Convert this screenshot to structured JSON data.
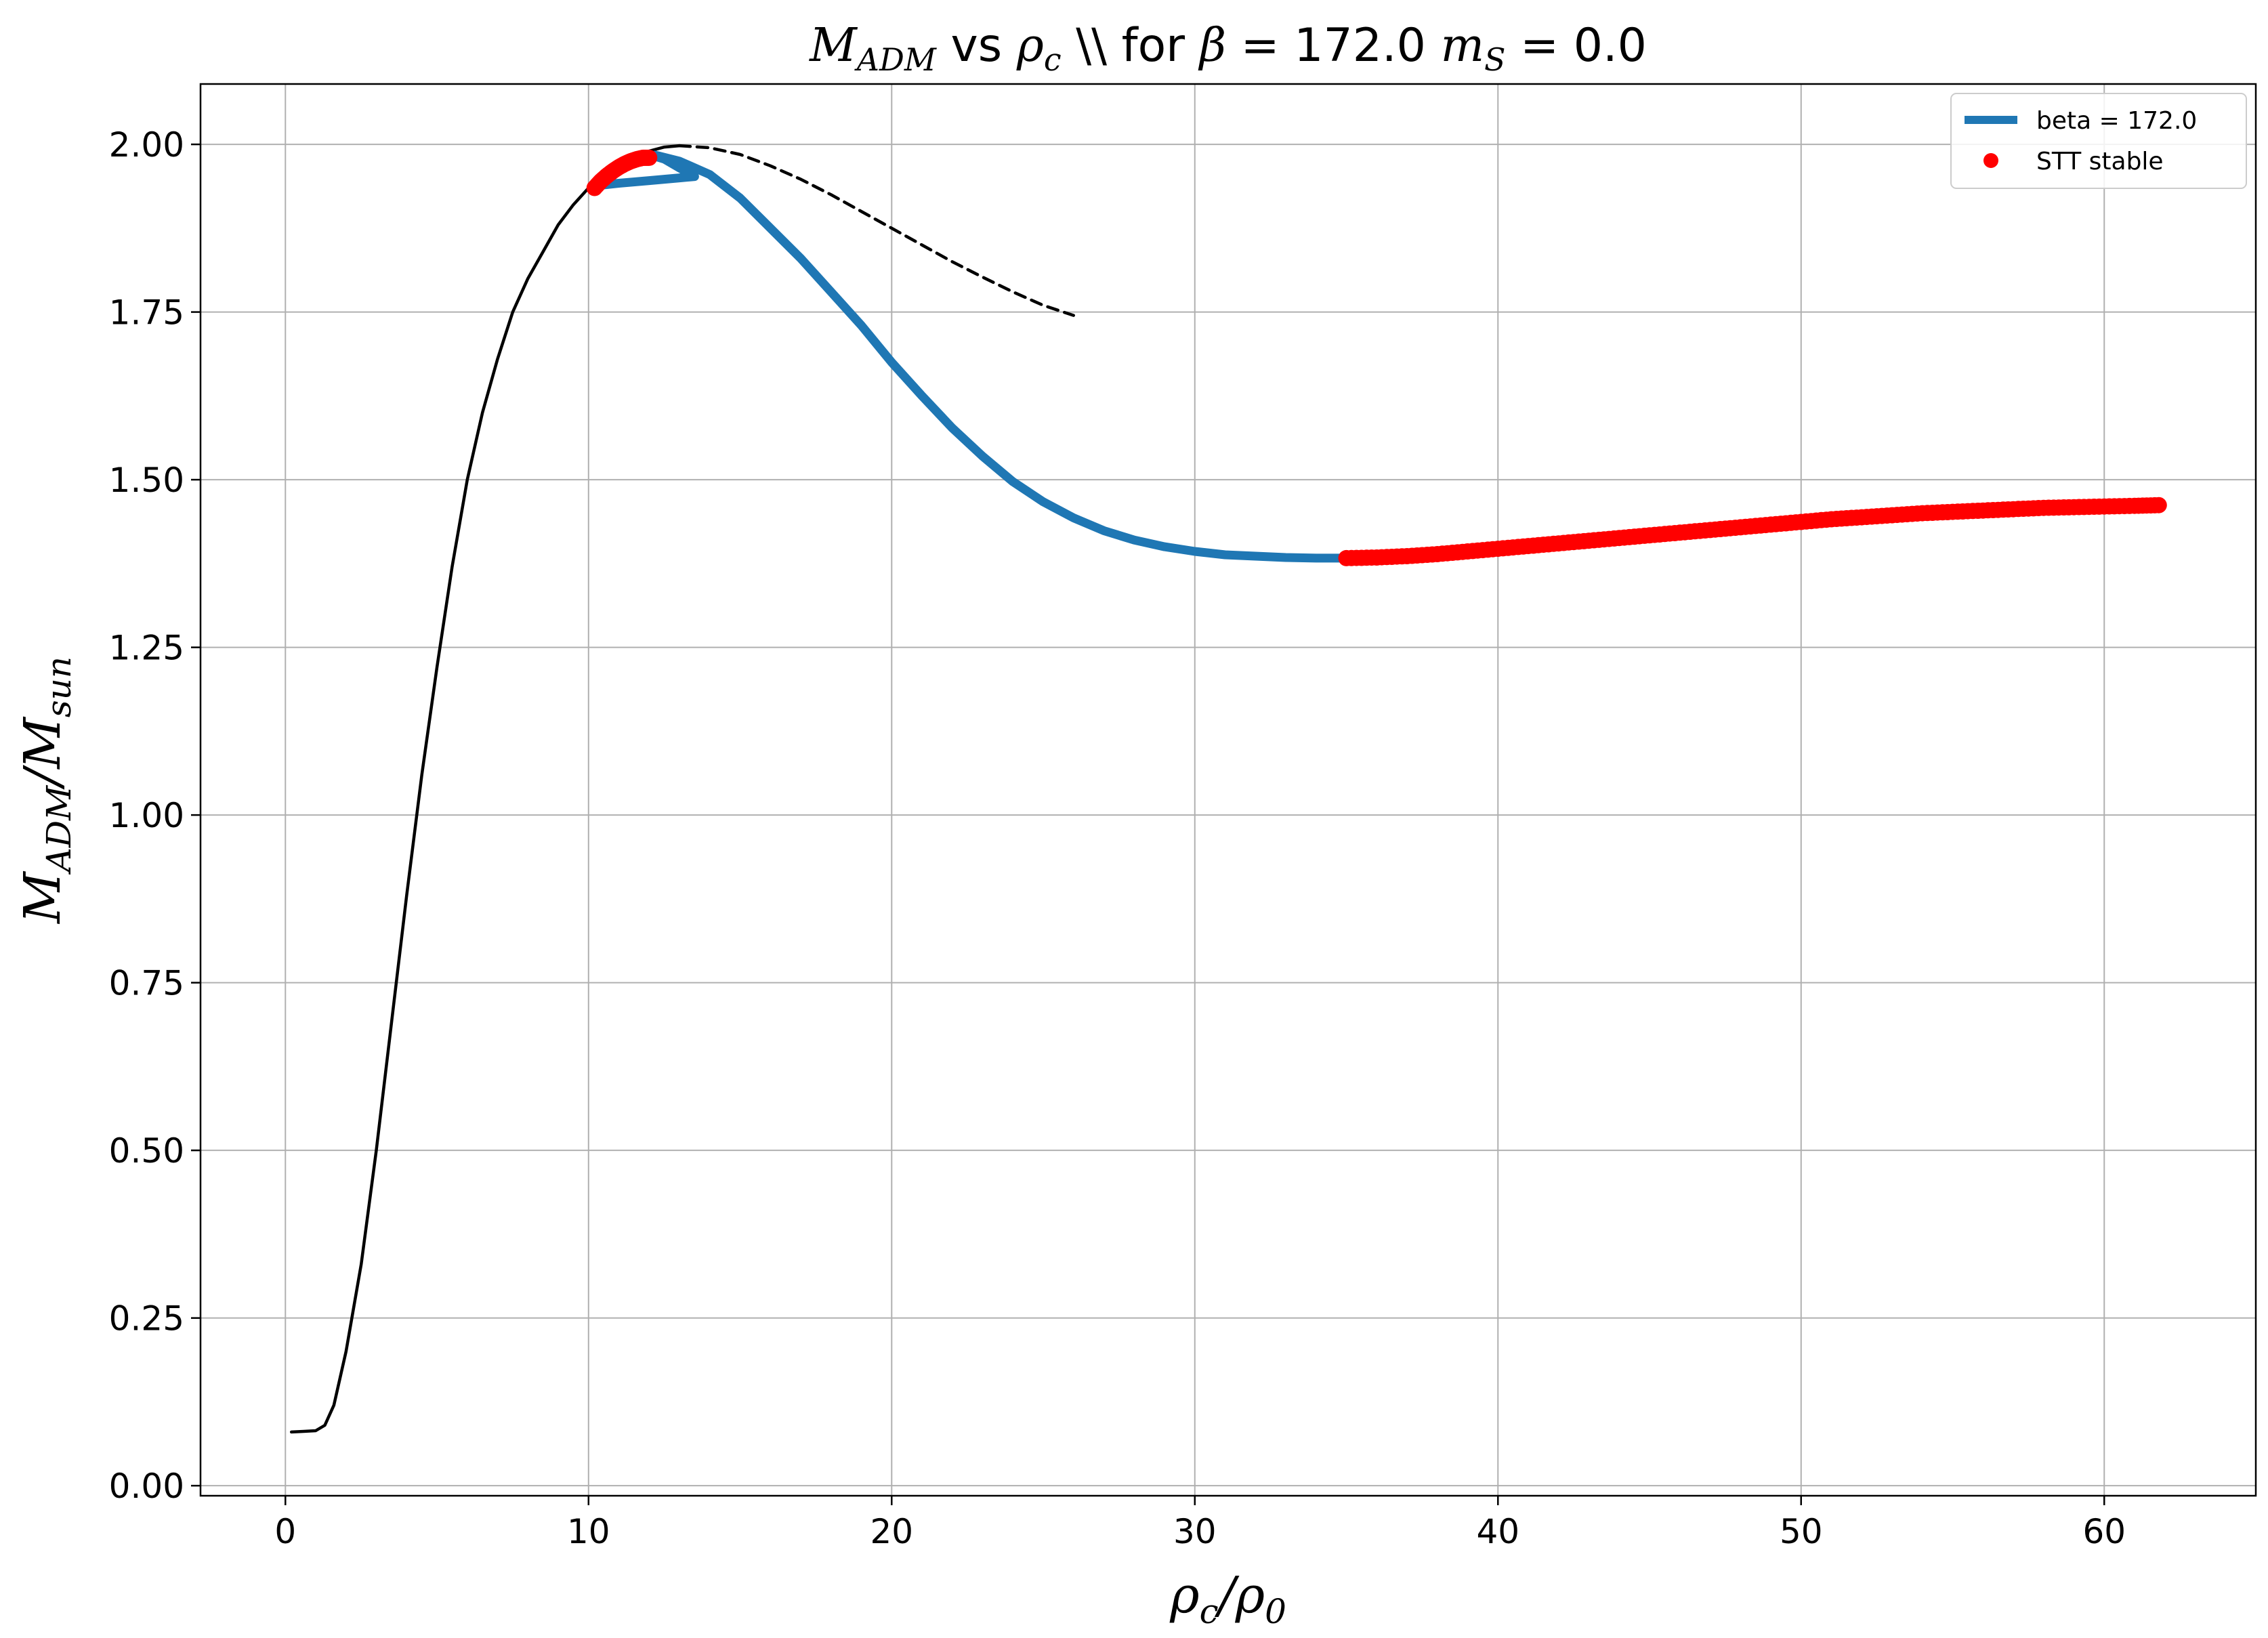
{
  "chart_data": {
    "type": "line",
    "title_parts": {
      "m": "M",
      "m_sub": "ADM",
      "vs": " vs ",
      "rho": "ρ",
      "rho_sub": "c",
      "mid": " \\\\ for ",
      "beta": "β",
      "beta_val": " = 172.0 ",
      "ms": "m",
      "ms_sub": "S",
      "ms_val": " = 0.0"
    },
    "xlabel_parts": {
      "a": "ρ",
      "a_sub": "c",
      "slash": "/",
      "b": "ρ",
      "b_sub": "0"
    },
    "ylabel_parts": {
      "a": "M",
      "a_sub": "ADM",
      "slash": "/",
      "b": "M",
      "b_sub": "sun"
    },
    "xlim": [
      -2.8,
      65.0
    ],
    "ylim": [
      -0.015,
      2.09
    ],
    "xticks": [
      0,
      10,
      20,
      30,
      40,
      50,
      60
    ],
    "xtick_labels": [
      "0",
      "10",
      "20",
      "30",
      "40",
      "50",
      "60"
    ],
    "yticks": [
      0.0,
      0.25,
      0.5,
      0.75,
      1.0,
      1.25,
      1.5,
      1.75,
      2.0
    ],
    "ytick_labels": [
      "0.00",
      "0.25",
      "0.50",
      "0.75",
      "1.00",
      "1.25",
      "1.50",
      "1.75",
      "2.00"
    ],
    "grid": true,
    "legend_position": "top-right",
    "legend": [
      {
        "label": "beta = 172.0",
        "kind": "line",
        "color": "#1f77b4"
      },
      {
        "label": "STT stable",
        "kind": "marker",
        "color": "#ff0000"
      }
    ],
    "series": [
      {
        "role": "GR reference (solid)",
        "color": "#000000",
        "style": "solid",
        "points": [
          [
            0.2,
            0.08
          ],
          [
            0.6,
            0.081
          ],
          [
            1.0,
            0.082
          ],
          [
            1.3,
            0.09
          ],
          [
            1.6,
            0.12
          ],
          [
            2.0,
            0.2
          ],
          [
            2.5,
            0.33
          ],
          [
            3.0,
            0.5
          ],
          [
            3.5,
            0.69
          ],
          [
            4.0,
            0.88
          ],
          [
            4.5,
            1.06
          ],
          [
            5.0,
            1.22
          ],
          [
            5.5,
            1.37
          ],
          [
            6.0,
            1.5
          ],
          [
            6.5,
            1.6
          ],
          [
            7.0,
            1.68
          ],
          [
            7.5,
            1.75
          ],
          [
            8.0,
            1.8
          ],
          [
            8.5,
            1.84
          ],
          [
            9.0,
            1.88
          ],
          [
            9.5,
            1.91
          ],
          [
            10.0,
            1.935
          ],
          [
            10.5,
            1.955
          ],
          [
            11.0,
            1.97
          ],
          [
            11.5,
            1.982
          ],
          [
            12.0,
            1.99
          ],
          [
            12.5,
            1.996
          ],
          [
            13.0,
            1.998
          ]
        ]
      },
      {
        "role": "GR reference (dashed)",
        "color": "#000000",
        "style": "dashed",
        "points": [
          [
            13.0,
            1.998
          ],
          [
            14.0,
            1.995
          ],
          [
            15.0,
            1.985
          ],
          [
            16.0,
            1.968
          ],
          [
            17.0,
            1.948
          ],
          [
            18.0,
            1.925
          ],
          [
            19.0,
            1.9
          ],
          [
            20.0,
            1.875
          ],
          [
            21.0,
            1.85
          ],
          [
            22.0,
            1.825
          ],
          [
            23.0,
            1.802
          ],
          [
            24.0,
            1.78
          ],
          [
            25.0,
            1.76
          ],
          [
            26.0,
            1.745
          ]
        ]
      },
      {
        "name": "beta = 172.0",
        "color": "#1f77b4",
        "style": "solid",
        "points": [
          [
            10.2,
            1.938
          ],
          [
            11.0,
            1.942
          ],
          [
            12.0,
            1.946
          ],
          [
            13.0,
            1.95
          ],
          [
            13.5,
            1.952
          ],
          [
            13.0,
            1.965
          ],
          [
            12.5,
            1.978
          ],
          [
            12.0,
            1.985
          ],
          [
            11.5,
            1.978
          ],
          [
            12.2,
            1.984
          ],
          [
            13.0,
            1.975
          ],
          [
            14.0,
            1.955
          ],
          [
            15.0,
            1.92
          ],
          [
            16.0,
            1.875
          ],
          [
            17.0,
            1.83
          ],
          [
            18.0,
            1.78
          ],
          [
            19.0,
            1.73
          ],
          [
            20.0,
            1.675
          ],
          [
            21.0,
            1.625
          ],
          [
            22.0,
            1.577
          ],
          [
            23.0,
            1.535
          ],
          [
            24.0,
            1.497
          ],
          [
            25.0,
            1.467
          ],
          [
            26.0,
            1.443
          ],
          [
            27.0,
            1.424
          ],
          [
            28.0,
            1.41
          ],
          [
            29.0,
            1.4
          ],
          [
            30.0,
            1.393
          ],
          [
            31.0,
            1.388
          ],
          [
            32.0,
            1.386
          ],
          [
            33.0,
            1.384
          ],
          [
            34.0,
            1.383
          ],
          [
            35.0,
            1.383
          ]
        ]
      }
    ],
    "stable_points": {
      "name": "STT stable",
      "color": "#ff0000",
      "points": [
        [
          10.2,
          1.935
        ],
        [
          10.4,
          1.945
        ],
        [
          10.6,
          1.953
        ],
        [
          10.8,
          1.96
        ],
        [
          11.0,
          1.966
        ],
        [
          11.2,
          1.971
        ],
        [
          11.4,
          1.975
        ],
        [
          11.6,
          1.978
        ],
        [
          11.8,
          1.98
        ],
        [
          12.0,
          1.98
        ],
        [
          35.0,
          1.383
        ],
        [
          36.0,
          1.384
        ],
        [
          37.0,
          1.386
        ],
        [
          38.0,
          1.389
        ],
        [
          39.0,
          1.393
        ],
        [
          40.0,
          1.397
        ],
        [
          41.0,
          1.401
        ],
        [
          42.0,
          1.405
        ],
        [
          43.0,
          1.409
        ],
        [
          44.0,
          1.413
        ],
        [
          45.0,
          1.417
        ],
        [
          46.0,
          1.421
        ],
        [
          47.0,
          1.425
        ],
        [
          48.0,
          1.429
        ],
        [
          49.0,
          1.433
        ],
        [
          50.0,
          1.437
        ],
        [
          51.0,
          1.441
        ],
        [
          52.0,
          1.444
        ],
        [
          53.0,
          1.447
        ],
        [
          54.0,
          1.45
        ],
        [
          55.0,
          1.452
        ],
        [
          56.0,
          1.454
        ],
        [
          57.0,
          1.456
        ],
        [
          58.0,
          1.458
        ],
        [
          59.0,
          1.459
        ],
        [
          60.0,
          1.46
        ],
        [
          61.0,
          1.461
        ],
        [
          61.8,
          1.462
        ]
      ]
    }
  }
}
